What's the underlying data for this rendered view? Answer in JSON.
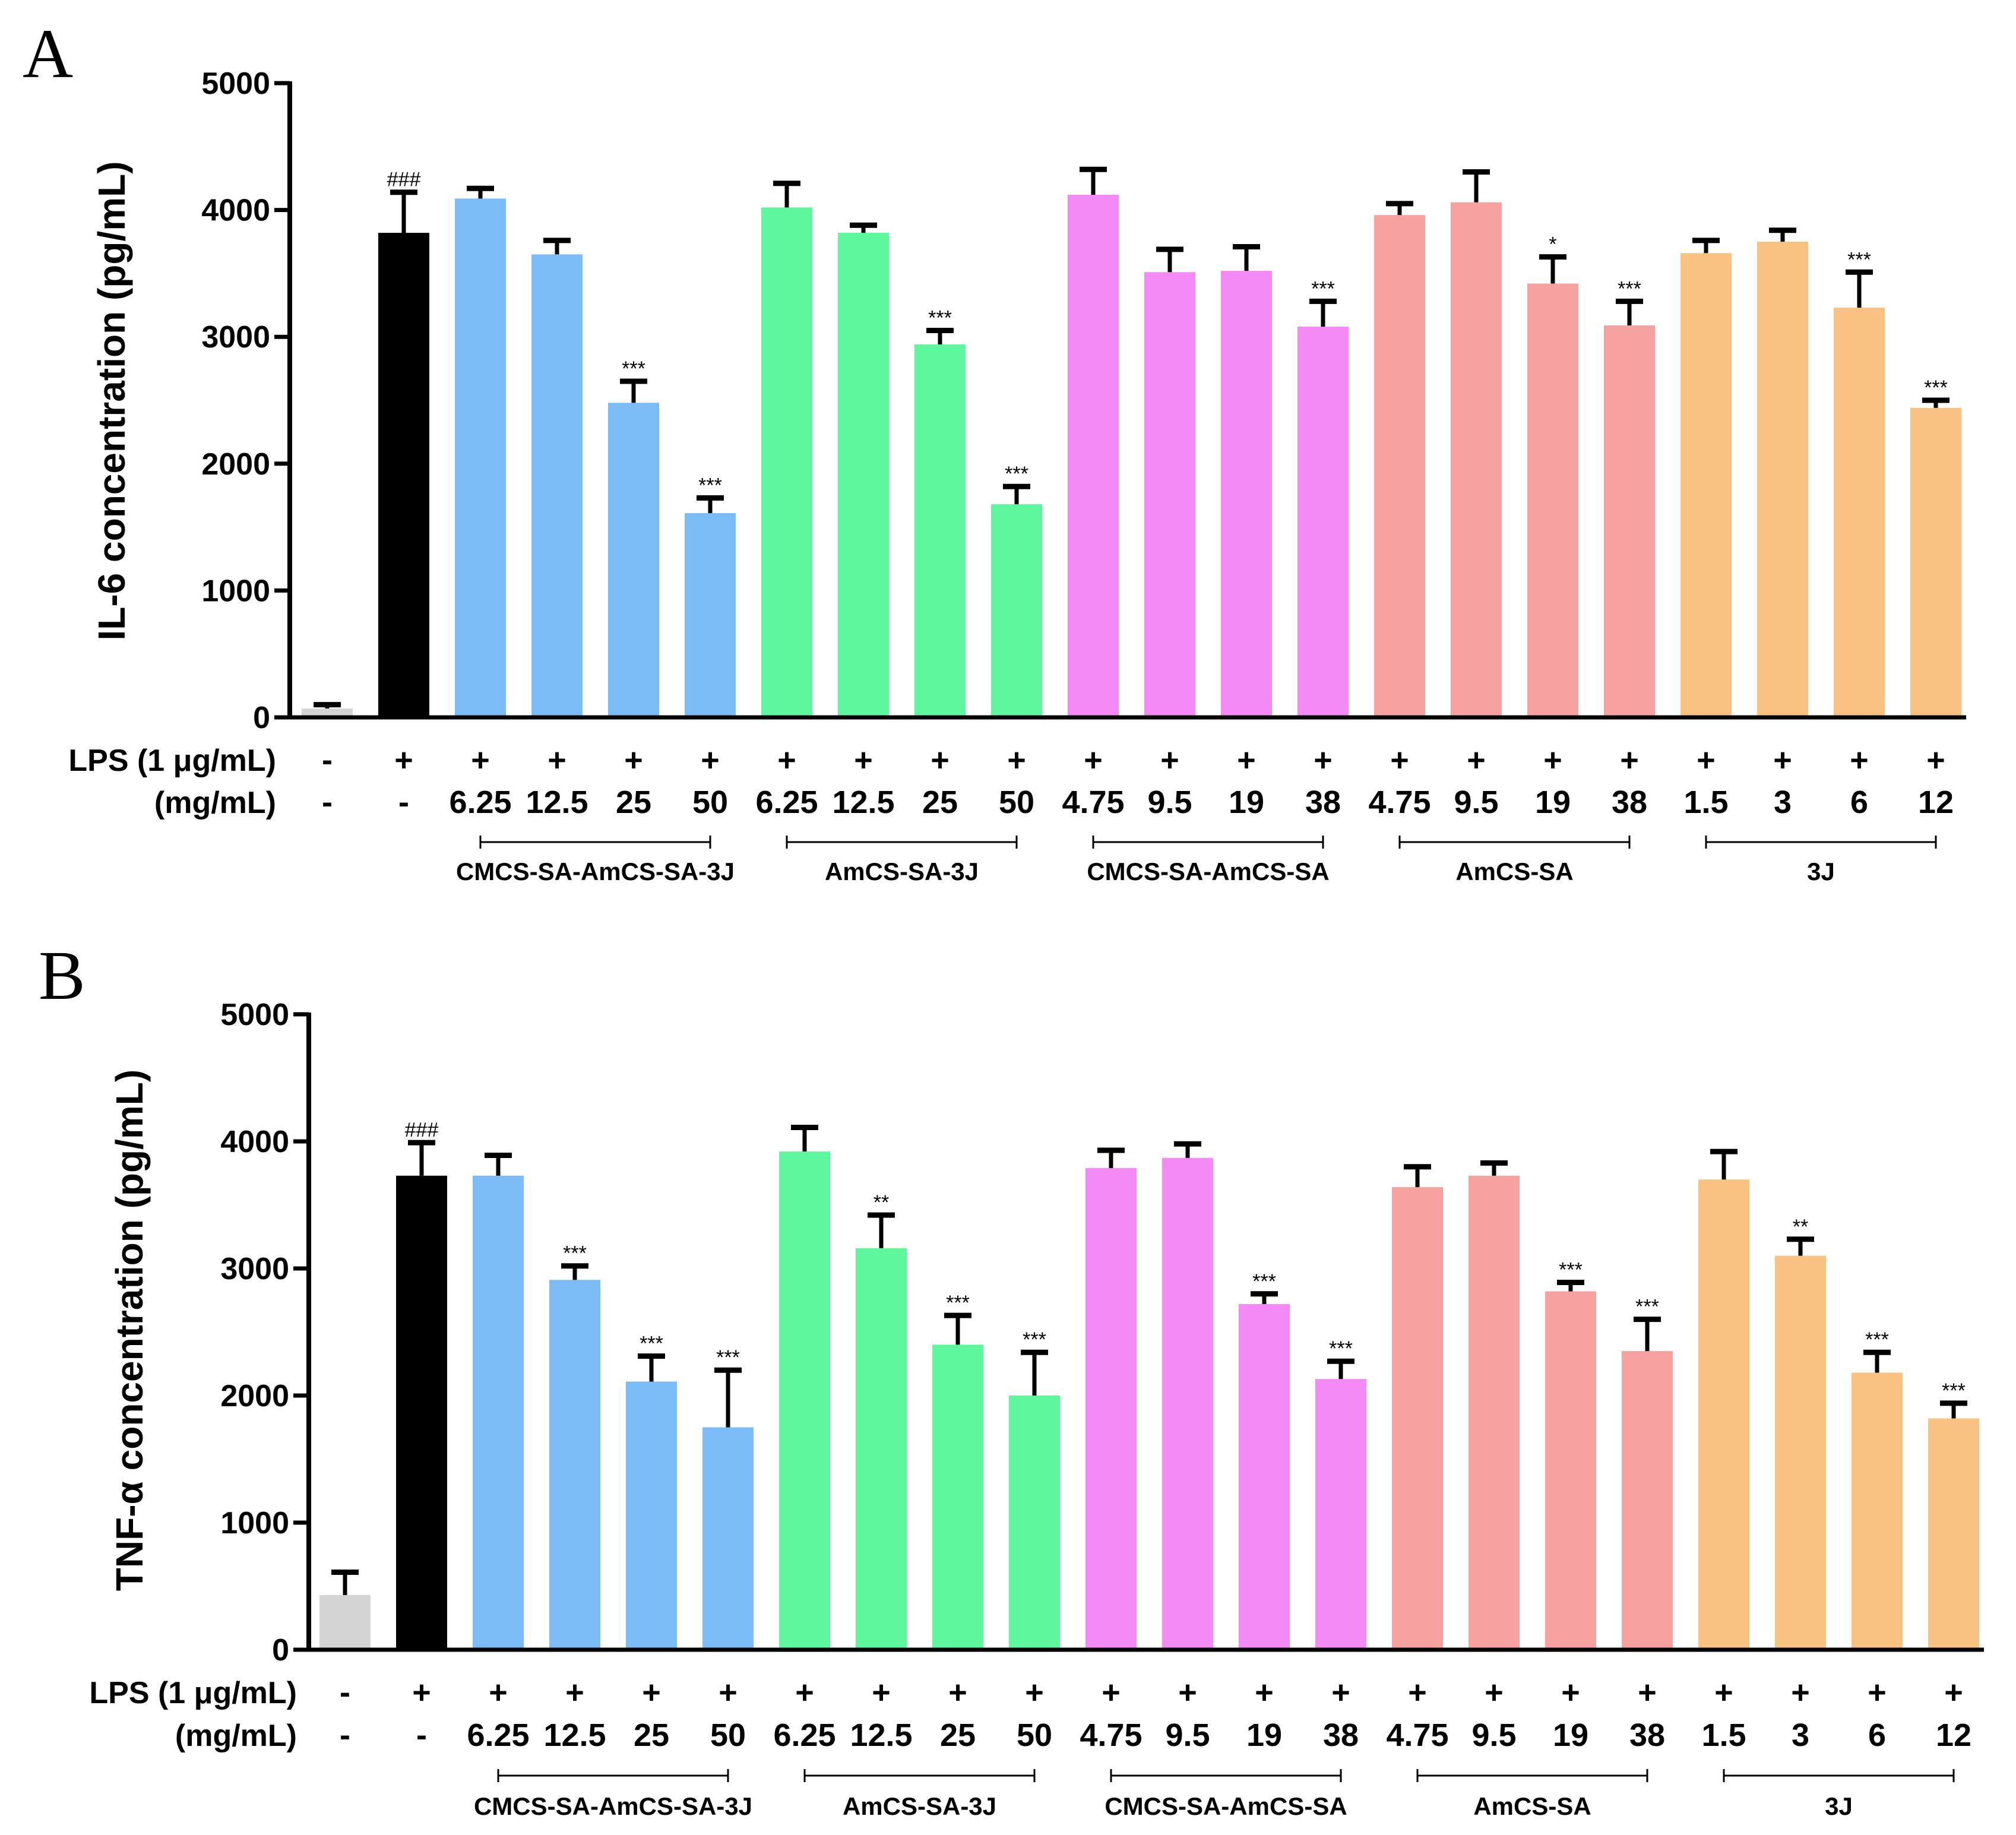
{
  "figure": {
    "panels": [
      "A",
      "B"
    ],
    "lps_row_label": "LPS (1 μg/mL)",
    "dose_row_label": "(mg/mL)"
  },
  "chart_data": [
    {
      "type": "bar",
      "panel": "A",
      "ylabel": "IL-6 concentration (pg/mL)",
      "ylim": [
        0,
        5000
      ],
      "yticks": [
        0,
        1000,
        2000,
        3000,
        4000,
        5000
      ],
      "lps": [
        "-",
        "+",
        "+",
        "+",
        "+",
        "+",
        "+",
        "+",
        "+",
        "+",
        "+",
        "+",
        "+",
        "+",
        "+",
        "+",
        "+",
        "+",
        "+",
        "+",
        "+",
        "+"
      ],
      "doses": [
        "-",
        "-",
        "6.25",
        "12.5",
        "25",
        "50",
        "6.25",
        "12.5",
        "25",
        "50",
        "4.75",
        "9.5",
        "19",
        "38",
        "4.75",
        "9.5",
        "19",
        "38",
        "1.5",
        "3",
        "6",
        "12"
      ],
      "groups": [
        {
          "name": "CMCS-SA-AmCS-SA-3J",
          "start": 2,
          "end": 5,
          "color": "#7bbcf7"
        },
        {
          "name": "AmCS-SA-3J",
          "start": 6,
          "end": 9,
          "color": "#5ef79e"
        },
        {
          "name": "CMCS-SA-AmCS-SA",
          "start": 10,
          "end": 13,
          "color": "#f48af6"
        },
        {
          "name": "AmCS-SA",
          "start": 14,
          "end": 17,
          "color": "#f7a1a1"
        },
        {
          "name": "3J",
          "start": 18,
          "end": 21,
          "color": "#f9c283"
        }
      ],
      "control_colors": [
        "#d4d4d4",
        "#000000"
      ],
      "values": [
        70,
        3820,
        4090,
        3650,
        2480,
        1610,
        4020,
        3820,
        2940,
        1680,
        4120,
        3510,
        3520,
        3080,
        3960,
        4060,
        3420,
        3090,
        3660,
        3750,
        3230,
        2440
      ],
      "errors": [
        30,
        320,
        80,
        110,
        170,
        120,
        190,
        60,
        110,
        140,
        200,
        180,
        190,
        200,
        90,
        240,
        210,
        190,
        100,
        90,
        280,
        60
      ],
      "significance": [
        "",
        "###",
        "",
        "",
        "***",
        "***",
        "",
        "",
        "***",
        "***",
        "",
        "",
        "",
        "***",
        "",
        "",
        "*",
        "***",
        "",
        "",
        "***",
        "***"
      ]
    },
    {
      "type": "bar",
      "panel": "B",
      "ylabel": "TNF-α concentration (pg/mL)",
      "ylim": [
        0,
        5000
      ],
      "yticks": [
        0,
        1000,
        2000,
        3000,
        4000,
        5000
      ],
      "lps": [
        "-",
        "+",
        "+",
        "+",
        "+",
        "+",
        "+",
        "+",
        "+",
        "+",
        "+",
        "+",
        "+",
        "+",
        "+",
        "+",
        "+",
        "+",
        "+",
        "+",
        "+",
        "+"
      ],
      "doses": [
        "-",
        "-",
        "6.25",
        "12.5",
        "25",
        "50",
        "6.25",
        "12.5",
        "25",
        "50",
        "4.75",
        "9.5",
        "19",
        "38",
        "4.75",
        "9.5",
        "19",
        "38",
        "1.5",
        "3",
        "6",
        "12"
      ],
      "groups": [
        {
          "name": "CMCS-SA-AmCS-SA-3J",
          "start": 2,
          "end": 5,
          "color": "#7bbcf7"
        },
        {
          "name": "AmCS-SA-3J",
          "start": 6,
          "end": 9,
          "color": "#5ef79e"
        },
        {
          "name": "CMCS-SA-AmCS-SA",
          "start": 10,
          "end": 13,
          "color": "#f48af6"
        },
        {
          "name": "AmCS-SA",
          "start": 14,
          "end": 17,
          "color": "#f7a1a1"
        },
        {
          "name": "3J",
          "start": 18,
          "end": 21,
          "color": "#f9c283"
        }
      ],
      "control_colors": [
        "#d4d4d4",
        "#000000"
      ],
      "values": [
        430,
        3730,
        3730,
        2910,
        2110,
        1750,
        3920,
        3160,
        2400,
        2000,
        3790,
        3870,
        2720,
        2130,
        3640,
        3730,
        2820,
        2350,
        3700,
        3100,
        2180,
        1820
      ],
      "errors": [
        180,
        260,
        160,
        110,
        200,
        450,
        190,
        260,
        230,
        340,
        140,
        110,
        80,
        140,
        160,
        100,
        70,
        250,
        220,
        130,
        160,
        120
      ],
      "significance": [
        "",
        "###",
        "",
        "***",
        "***",
        "***",
        "",
        "**",
        "***",
        "***",
        "",
        "",
        "***",
        "***",
        "",
        "",
        "***",
        "***",
        "",
        "**",
        "***",
        "***"
      ]
    }
  ]
}
